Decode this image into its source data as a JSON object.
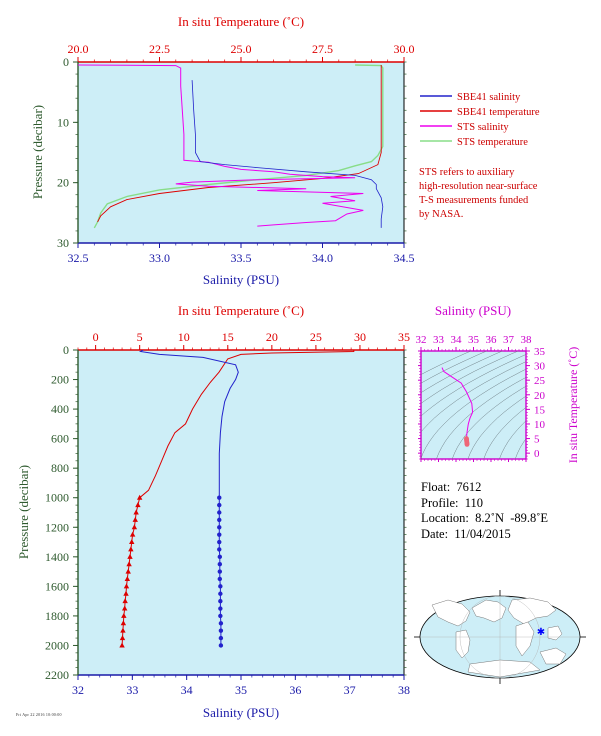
{
  "colors": {
    "plot_bg": "#cdeef7",
    "temp_axis": "#dd0000",
    "sal_axis": "#1a1aa8",
    "pressure_axis": "#2e5a2e",
    "ts_axis": "#cc00cc",
    "sbe_salinity": "#2222cc",
    "sbe_temperature": "#dd0000",
    "sts_salinity": "#ee00ee",
    "sts_temperature": "#88dd88"
  },
  "top_panel": {
    "temp_axis_title": "In situ Temperature (˚C)",
    "sal_axis_title": "Salinity (PSU)",
    "pressure_axis_title": "Pressure (decibar)",
    "legend": [
      {
        "label": "SBE41 salinity",
        "color": "#2222cc"
      },
      {
        "label": "SBE41 temperature",
        "color": "#dd0000"
      },
      {
        "label": "STS salinity",
        "color": "#ee00ee"
      },
      {
        "label": "STS temperature",
        "color": "#88dd88"
      }
    ],
    "note_lines": [
      "STS refers to auxiliary",
      "high-resolution near-surface",
      "T-S measurements funded",
      "by NASA."
    ]
  },
  "main_panel": {
    "temp_axis_title": "In situ Temperature (˚C)",
    "sal_axis_title": "Salinity (PSU)",
    "pressure_axis_title": "Pressure (decibar)"
  },
  "ts_panel": {
    "sal_axis_title": "Salinity (PSU)",
    "temp_axis_title": "In situ Temperature (˚C)"
  },
  "info": {
    "float": "Float:  7612",
    "profile": "Profile:  110",
    "location": "Location:  8.2˚N  -89.8˚E",
    "date": "Date:  11/04/2015"
  },
  "footer": "Fri Apr 22 2016 10:00:00",
  "chart_data": [
    {
      "type": "line",
      "id": "top_profile",
      "title": "",
      "xlabel_top": "In situ Temperature (˚C)",
      "xlabel_bottom": "Salinity (PSU)",
      "ylabel": "Pressure (decibar)",
      "temp_lim": [
        20.0,
        30.0
      ],
      "temp_ticks": [
        "20.0",
        "22.5",
        "25.0",
        "27.5",
        "30.0"
      ],
      "sal_lim": [
        32.5,
        34.5
      ],
      "sal_ticks": [
        "32.5",
        "33.0",
        "33.5",
        "34.0",
        "34.5"
      ],
      "pressure_lim": [
        0,
        30
      ],
      "pressure_ticks": [
        "0",
        "10",
        "20",
        "30"
      ],
      "series": [
        {
          "name": "SBE41 salinity",
          "axis": "salinity",
          "points": [
            [
              33.2,
              3
            ],
            [
              33.21,
              8
            ],
            [
              33.22,
              12
            ],
            [
              33.22,
              15
            ],
            [
              33.25,
              16.5
            ],
            [
              33.4,
              17
            ],
            [
              33.6,
              17.5
            ],
            [
              33.9,
              18.2
            ],
            [
              34.2,
              18.8
            ],
            [
              34.3,
              19.5
            ],
            [
              34.33,
              20.3
            ],
            [
              34.33,
              21
            ],
            [
              34.36,
              22.5
            ],
            [
              34.37,
              24
            ],
            [
              34.36,
              26
            ],
            [
              34.36,
              27.5
            ]
          ]
        },
        {
          "name": "SBE41 temperature",
          "axis": "temperature",
          "points": [
            [
              29.3,
              0.5
            ],
            [
              29.3,
              5
            ],
            [
              29.3,
              10
            ],
            [
              29.3,
              15
            ],
            [
              29.2,
              17
            ],
            [
              28.6,
              18.5
            ],
            [
              27.5,
              19.3
            ],
            [
              26.0,
              20.0
            ],
            [
              24.0,
              20.8
            ],
            [
              22.5,
              21.8
            ],
            [
              21.5,
              22.8
            ],
            [
              21.0,
              24
            ],
            [
              20.7,
              25.5
            ],
            [
              20.6,
              26.5
            ]
          ]
        },
        {
          "name": "STS salinity",
          "axis": "salinity",
          "points": [
            [
              32.5,
              0.5
            ],
            [
              33.1,
              0.6
            ],
            [
              33.13,
              1
            ],
            [
              33.13,
              4
            ],
            [
              33.14,
              8
            ],
            [
              33.15,
              12
            ],
            [
              33.15,
              15
            ],
            [
              33.15,
              16.3
            ],
            [
              33.3,
              16.6
            ],
            [
              33.4,
              17.3
            ],
            [
              33.5,
              17.8
            ],
            [
              33.7,
              18.2
            ],
            [
              33.8,
              18.6
            ],
            [
              34.0,
              19.0
            ],
            [
              34.2,
              19.2
            ],
            [
              33.6,
              19.5
            ],
            [
              33.2,
              19.9
            ],
            [
              33.1,
              20.2
            ],
            [
              33.3,
              20.6
            ],
            [
              33.9,
              21.0
            ],
            [
              33.6,
              21.3
            ],
            [
              34.25,
              21.8
            ],
            [
              34.05,
              22.3
            ],
            [
              34.2,
              23
            ],
            [
              34.0,
              23.4
            ],
            [
              34.25,
              24.6
            ],
            [
              34.15,
              25.2
            ],
            [
              34.08,
              26.3
            ],
            [
              33.9,
              26.6
            ],
            [
              33.7,
              27.0
            ],
            [
              33.6,
              27.2
            ]
          ]
        },
        {
          "name": "STS temperature",
          "axis": "temperature",
          "points": [
            [
              28.5,
              0.5
            ],
            [
              29.3,
              0.6
            ],
            [
              29.35,
              1
            ],
            [
              29.35,
              5
            ],
            [
              29.35,
              10
            ],
            [
              29.35,
              14
            ],
            [
              29.2,
              15.5
            ],
            [
              29.0,
              16.5
            ],
            [
              28.5,
              17.2
            ],
            [
              28.0,
              18.0
            ],
            [
              27.0,
              18.8
            ],
            [
              25.5,
              19.5
            ],
            [
              24.0,
              20.3
            ],
            [
              22.5,
              21.2
            ],
            [
              21.5,
              22.3
            ],
            [
              20.9,
              23.5
            ],
            [
              20.7,
              25
            ],
            [
              20.6,
              26.5
            ],
            [
              20.5,
              27.5
            ]
          ]
        }
      ]
    },
    {
      "type": "line",
      "id": "main_profile",
      "title": "",
      "xlabel_top": "In situ Temperature (˚C)",
      "xlabel_bottom": "Salinity (PSU)",
      "ylabel": "Pressure (decibar)",
      "temp_lim": [
        -2,
        35
      ],
      "temp_ticks": [
        0,
        5,
        10,
        15,
        20,
        25,
        30,
        35
      ],
      "sal_lim": [
        32,
        38
      ],
      "sal_ticks": [
        32,
        33,
        34,
        35,
        36,
        37,
        38
      ],
      "pressure_lim": [
        0,
        2200
      ],
      "pressure_ticks": [
        0,
        200,
        400,
        600,
        800,
        1000,
        1200,
        1400,
        1600,
        1800,
        2000,
        2200
      ],
      "series": [
        {
          "name": "SBE41 temperature",
          "axis": "temperature",
          "points": [
            [
              29.3,
              0
            ],
            [
              29.3,
              10
            ],
            [
              20,
              20
            ],
            [
              16.5,
              30
            ],
            [
              15,
              60
            ],
            [
              14,
              150
            ],
            [
              13,
              220
            ],
            [
              12,
              300
            ],
            [
              11,
              400
            ],
            [
              10.2,
              500
            ],
            [
              9,
              560
            ],
            [
              8.2,
              650
            ],
            [
              7.5,
              750
            ],
            [
              6.8,
              850
            ],
            [
              6,
              950
            ],
            [
              5,
              1000
            ]
          ],
          "marker_points": [
            [
              5,
              1000
            ],
            [
              4.8,
              1050
            ],
            [
              4.6,
              1100
            ],
            [
              4.5,
              1150
            ],
            [
              4.4,
              1200
            ],
            [
              4.2,
              1250
            ],
            [
              4.1,
              1300
            ],
            [
              4.0,
              1350
            ],
            [
              3.9,
              1400
            ],
            [
              3.8,
              1450
            ],
            [
              3.7,
              1500
            ],
            [
              3.6,
              1550
            ],
            [
              3.5,
              1600
            ],
            [
              3.45,
              1650
            ],
            [
              3.35,
              1700
            ],
            [
              3.3,
              1750
            ],
            [
              3.2,
              1800
            ],
            [
              3.15,
              1850
            ],
            [
              3.1,
              1900
            ],
            [
              3.05,
              1950
            ],
            [
              3.0,
              2000
            ]
          ]
        },
        {
          "name": "SBE41 salinity",
          "axis": "salinity",
          "points": [
            [
              33.2,
              0
            ],
            [
              33.15,
              10
            ],
            [
              33.5,
              30
            ],
            [
              34.3,
              50
            ],
            [
              34.9,
              100
            ],
            [
              34.95,
              150
            ],
            [
              34.9,
              200
            ],
            [
              34.8,
              260
            ],
            [
              34.7,
              350
            ],
            [
              34.65,
              450
            ],
            [
              34.62,
              560
            ],
            [
              34.6,
              700
            ],
            [
              34.6,
              850
            ],
            [
              34.6,
              1000
            ]
          ],
          "marker_points": [
            [
              34.6,
              1000
            ],
            [
              34.6,
              1050
            ],
            [
              34.6,
              1100
            ],
            [
              34.6,
              1150
            ],
            [
              34.6,
              1200
            ],
            [
              34.6,
              1250
            ],
            [
              34.6,
              1300
            ],
            [
              34.6,
              1350
            ],
            [
              34.61,
              1400
            ],
            [
              34.61,
              1450
            ],
            [
              34.61,
              1500
            ],
            [
              34.61,
              1550
            ],
            [
              34.62,
              1600
            ],
            [
              34.62,
              1650
            ],
            [
              34.62,
              1700
            ],
            [
              34.62,
              1750
            ],
            [
              34.62,
              1800
            ],
            [
              34.63,
              1850
            ],
            [
              34.63,
              1900
            ],
            [
              34.63,
              1950
            ],
            [
              34.63,
              2000
            ]
          ]
        }
      ]
    },
    {
      "type": "scatter",
      "id": "ts_diagram",
      "title": "",
      "xlabel": "Salinity (PSU)",
      "ylabel": "In situ Temperature (˚C)",
      "xlim": [
        32,
        38
      ],
      "ylim": [
        -2,
        35
      ],
      "xticks": [
        32,
        33,
        34,
        35,
        36,
        37,
        38
      ],
      "yticks": [
        0,
        5,
        10,
        15,
        20,
        25,
        30,
        35
      ],
      "series": [
        {
          "name": "profile",
          "line_color": "#ee00ee",
          "points": [
            [
              33.2,
              29.3
            ],
            [
              33.3,
              28
            ],
            [
              33.8,
              26
            ],
            [
              34.3,
              24
            ],
            [
              34.6,
              21
            ],
            [
              34.9,
              17
            ],
            [
              34.95,
              14
            ],
            [
              34.8,
              12
            ],
            [
              34.7,
              10
            ],
            [
              34.65,
              8
            ],
            [
              34.62,
              6.5
            ],
            [
              34.6,
              5
            ]
          ],
          "dense_points": [
            [
              34.6,
              5
            ],
            [
              34.6,
              4.6
            ],
            [
              34.61,
              4.4
            ],
            [
              34.61,
              4.1
            ],
            [
              34.62,
              3.8
            ],
            [
              34.62,
              3.5
            ],
            [
              34.63,
              3.2
            ],
            [
              34.63,
              3.0
            ]
          ]
        }
      ]
    }
  ]
}
